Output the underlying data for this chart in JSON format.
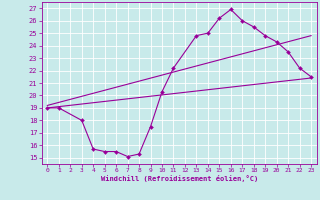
{
  "xlabel": "Windchill (Refroidissement éolien,°C)",
  "bg_color": "#c8eaea",
  "line_color": "#990099",
  "grid_color": "#ffffff",
  "xlim": [
    -0.5,
    23.5
  ],
  "ylim": [
    14.5,
    27.5
  ],
  "xticks": [
    0,
    1,
    2,
    3,
    4,
    5,
    6,
    7,
    8,
    9,
    10,
    11,
    12,
    13,
    14,
    15,
    16,
    17,
    18,
    19,
    20,
    21,
    22,
    23
  ],
  "yticks": [
    15,
    16,
    17,
    18,
    19,
    20,
    21,
    22,
    23,
    24,
    25,
    26,
    27
  ],
  "line1_x": [
    0,
    1,
    3,
    4,
    5,
    6,
    7,
    8,
    9,
    10,
    11,
    13,
    14,
    15,
    16,
    17,
    18,
    19,
    20,
    21,
    22,
    23
  ],
  "line1_y": [
    19,
    19,
    18,
    15.7,
    15.5,
    15.5,
    15.1,
    15.3,
    17.5,
    20.3,
    22.2,
    24.8,
    25,
    26.2,
    26.9,
    26.0,
    25.5,
    24.8,
    24.3,
    23.5,
    22.2,
    21.5
  ],
  "line2_x": [
    0,
    23
  ],
  "line2_y": [
    19.0,
    21.4
  ],
  "line3_x": [
    0,
    23
  ],
  "line3_y": [
    19.2,
    24.8
  ]
}
